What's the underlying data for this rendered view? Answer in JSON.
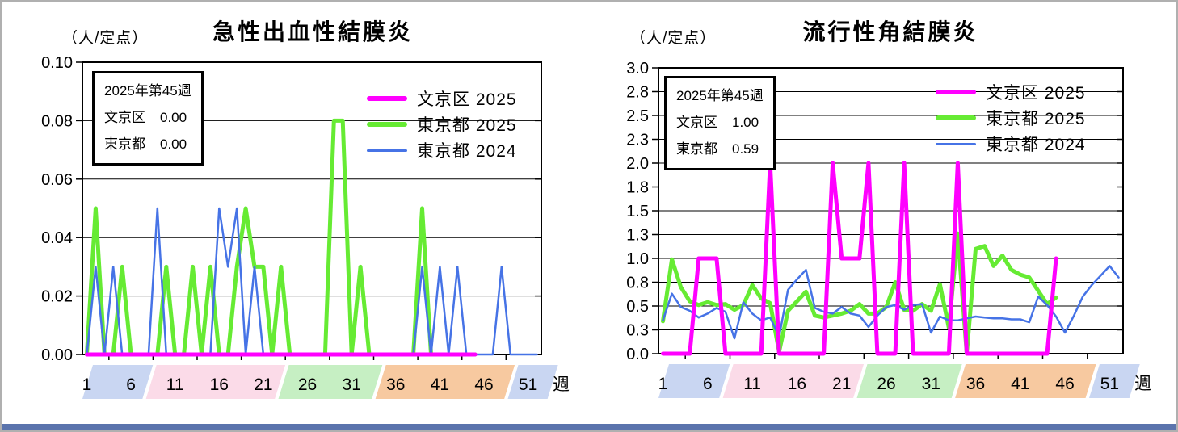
{
  "legend": {
    "items": [
      {
        "label": "文京区 2025",
        "color": "#FF00FF",
        "weight": "thick"
      },
      {
        "label": "東京都 2025",
        "color": "#66EB33",
        "weight": "thick"
      },
      {
        "label": "東京都 2024",
        "color": "#4673E6",
        "weight": "thin"
      }
    ]
  },
  "band_colors": {
    "blue": "#C9D6F2",
    "pink": "#FBDBE8",
    "green": "#C6EFC3",
    "orange": "#F7C9A0"
  },
  "chart_data": [
    {
      "type": "line",
      "title": "急性出血性結膜炎",
      "unit_label": "（人/定点）",
      "info_box": {
        "title": "2025年第45週",
        "rows": [
          {
            "label": "文京区",
            "value": "0.00"
          },
          {
            "label": "東京都",
            "value": "0.00"
          }
        ]
      },
      "y": {
        "min": 0,
        "max": 0.1,
        "ticks": [
          {
            "v": 0.1,
            "label": "0.10"
          },
          {
            "v": 0.08,
            "label": "0.08"
          },
          {
            "v": 0.06,
            "label": "0.06"
          },
          {
            "v": 0.04,
            "label": "0.04"
          },
          {
            "v": 0.02,
            "label": "0.02"
          },
          {
            "v": 0.0,
            "label": "0.00"
          }
        ]
      },
      "x": {
        "weeks": 52,
        "axis_suffix": "週",
        "bands": [
          {
            "from": 0.5,
            "to": 7.3,
            "color_key": "blue",
            "text_color": "#2A3E6F",
            "labels": [
              1,
              6
            ]
          },
          {
            "from": 7.7,
            "to": 22.3,
            "color_key": "pink",
            "text_color": "#7A2743",
            "labels": [
              11,
              16,
              21
            ]
          },
          {
            "from": 22.7,
            "to": 33.3,
            "color_key": "green",
            "text_color": "#1E5A2E",
            "labels": [
              26,
              31
            ]
          },
          {
            "from": 33.7,
            "to": 48.3,
            "color_key": "orange",
            "text_color": "#74421C",
            "labels": [
              36,
              41,
              46
            ]
          },
          {
            "from": 48.7,
            "to": 53.2,
            "color_key": "blue",
            "text_color": "#2A3E6F",
            "labels": [
              51
            ]
          }
        ]
      },
      "series": [
        {
          "name": "文京区 2025",
          "color": "#FF00FF",
          "weight": "thick",
          "values": [
            0,
            0,
            0,
            0,
            0,
            0,
            0,
            0,
            0,
            0,
            0,
            0,
            0,
            0,
            0,
            0,
            0,
            0,
            0,
            0,
            0,
            0,
            0,
            0,
            0,
            0,
            0,
            0,
            0,
            0,
            0,
            0,
            0,
            0,
            0,
            0,
            0,
            0,
            0,
            0,
            0,
            0,
            0,
            0,
            0
          ]
        },
        {
          "name": "東京都 2025",
          "color": "#66EB33",
          "weight": "thick",
          "values": [
            0,
            0.05,
            0,
            0,
            0.03,
            0,
            0,
            0,
            0,
            0.03,
            0,
            0,
            0.03,
            0,
            0.03,
            0,
            0,
            0.03,
            0.05,
            0.03,
            0.03,
            0,
            0.03,
            0,
            0,
            0,
            0,
            0,
            0.08,
            0.08,
            0,
            0.03,
            0,
            0,
            0,
            0,
            0,
            0,
            0.05,
            0,
            0,
            0,
            0,
            0,
            0
          ]
        },
        {
          "name": "東京都 2024",
          "color": "#4673E6",
          "weight": "thin",
          "values": [
            0,
            0.03,
            0,
            0.03,
            0,
            0,
            0,
            0,
            0.05,
            0,
            0,
            0,
            0,
            0,
            0,
            0.05,
            0.03,
            0.05,
            0,
            0.03,
            0,
            0,
            0,
            0,
            0,
            0,
            0,
            0,
            0,
            0,
            0,
            0,
            0,
            0,
            0,
            0,
            0,
            0,
            0.03,
            0,
            0.03,
            0,
            0.03,
            0,
            0,
            0,
            0,
            0.03,
            0,
            0,
            0,
            0
          ]
        }
      ]
    },
    {
      "type": "line",
      "title": "流行性角結膜炎",
      "unit_label": "（人/定点）",
      "info_box": {
        "title": "2025年第45週",
        "rows": [
          {
            "label": "文京区",
            "value": "1.00"
          },
          {
            "label": "東京都",
            "value": "0.59"
          }
        ]
      },
      "y": {
        "min": 0,
        "max": 3.0,
        "ticks": [
          {
            "v": 3.0,
            "label": "3.0"
          },
          {
            "v": 2.75,
            "label": "2.8"
          },
          {
            "v": 2.5,
            "label": "2.5"
          },
          {
            "v": 2.25,
            "label": "2.3"
          },
          {
            "v": 2.0,
            "label": "2.0"
          },
          {
            "v": 1.75,
            "label": "1.8"
          },
          {
            "v": 1.5,
            "label": "1.5"
          },
          {
            "v": 1.25,
            "label": "1.3"
          },
          {
            "v": 1.0,
            "label": "1.0"
          },
          {
            "v": 0.75,
            "label": "0.8"
          },
          {
            "v": 0.5,
            "label": "0.5"
          },
          {
            "v": 0.25,
            "label": "0.3"
          },
          {
            "v": 0.0,
            "label": "0.0"
          }
        ]
      },
      "x": {
        "weeks": 52,
        "axis_suffix": "週",
        "bands": [
          {
            "from": 0.5,
            "to": 7.3,
            "color_key": "blue",
            "text_color": "#2A3E6F",
            "labels": [
              1,
              6
            ]
          },
          {
            "from": 7.7,
            "to": 22.3,
            "color_key": "pink",
            "text_color": "#7A2743",
            "labels": [
              11,
              16,
              21
            ]
          },
          {
            "from": 22.7,
            "to": 33.3,
            "color_key": "green",
            "text_color": "#1E5A2E",
            "labels": [
              26,
              31
            ]
          },
          {
            "from": 33.7,
            "to": 48.3,
            "color_key": "orange",
            "text_color": "#74421C",
            "labels": [
              36,
              41,
              46
            ]
          },
          {
            "from": 48.7,
            "to": 53.2,
            "color_key": "blue",
            "text_color": "#2A3E6F",
            "labels": [
              51
            ]
          }
        ]
      },
      "series": [
        {
          "name": "文京区 2025",
          "color": "#FF00FF",
          "weight": "thick",
          "values": [
            0,
            0,
            0,
            0,
            1,
            1,
            1,
            0,
            0,
            0,
            0,
            0,
            2,
            0,
            0,
            0,
            0,
            0,
            0,
            2,
            1,
            1,
            1,
            2,
            0,
            0,
            0,
            2,
            0,
            0,
            0,
            0,
            0,
            2,
            0,
            0,
            0,
            0,
            0,
            0,
            0,
            0,
            0,
            0,
            1
          ]
        },
        {
          "name": "東京都 2025",
          "color": "#66EB33",
          "weight": "thick",
          "values": [
            0.34,
            0.99,
            0.7,
            0.55,
            0.51,
            0.54,
            0.51,
            0.52,
            0.46,
            0.51,
            0.72,
            0.58,
            0.53,
            0.02,
            0.45,
            0.55,
            0.65,
            0.4,
            0.38,
            0.4,
            0.42,
            0.45,
            0.52,
            0.42,
            0.42,
            0.49,
            0.75,
            0.46,
            0.45,
            0.52,
            0.45,
            0.73,
            0.27,
            1.26,
            0.0,
            1.1,
            1.13,
            0.92,
            1.03,
            0.88,
            0.83,
            0.8,
            0.66,
            0.52,
            0.59
          ]
        },
        {
          "name": "東京都 2024",
          "color": "#4673E6",
          "weight": "thin",
          "values": [
            0.35,
            0.63,
            0.49,
            0.45,
            0.38,
            0.42,
            0.48,
            0.44,
            0.16,
            0.54,
            0.42,
            0.35,
            0.38,
            0.18,
            0.67,
            0.78,
            0.88,
            0.48,
            0.44,
            0.42,
            0.49,
            0.42,
            0.4,
            0.28,
            0.4,
            0.49,
            0.51,
            0.46,
            0.51,
            0.52,
            0.22,
            0.39,
            0.35,
            0.35,
            0.37,
            0.39,
            0.38,
            0.37,
            0.37,
            0.36,
            0.36,
            0.33,
            0.6,
            0.51,
            0.39,
            0.22,
            0.4,
            0.6,
            0.72,
            0.82,
            0.92,
            0.8
          ]
        }
      ]
    }
  ]
}
